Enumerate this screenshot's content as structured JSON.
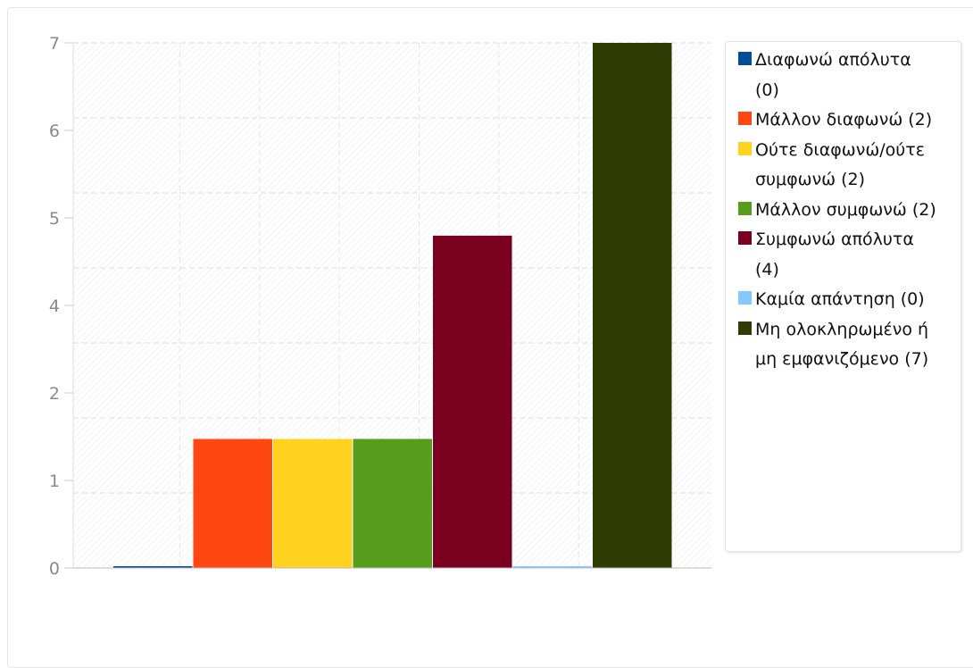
{
  "chart_data": {
    "type": "bar",
    "categories": [
      "Διαφωνώ απόλυτα",
      "Μάλλον διαφωνώ",
      "Ούτε διαφωνώ/ούτε συμφωνώ",
      "Μάλλον συμφωνώ",
      "Συμφωνώ απόλυτα",
      "Καμία απάντηση",
      "Μη ολοκληρωμένο ή μη εμφανιζόμενο"
    ],
    "values": [
      0,
      2,
      2,
      2,
      4,
      0,
      7
    ],
    "bar_heights_shown": [
      0.02,
      1.72,
      1.72,
      1.72,
      4.43,
      0.02,
      7
    ],
    "colors": [
      "#004c97",
      "#ff4711",
      "#ffd220",
      "#569c1d",
      "#7a0020",
      "#85c7ff",
      "#2f3c03"
    ],
    "legend": [
      "Διαφωνώ απόλυτα (0)",
      "Μάλλον διαφωνώ (2)",
      "Ούτε διαφωνώ/ούτε συμφωνώ (2)",
      "Μάλλον συμφωνώ (2)",
      "Συμφωνώ απόλυτα (4)",
      "Καμία απάντηση (0)",
      "Μη ολοκληρωμένο ή μη εμφανιζόμενο (7)"
    ],
    "y_ticks": [
      "0",
      "1",
      "2",
      "4",
      "5",
      "6",
      "7"
    ],
    "ylim": [
      0,
      7
    ],
    "grid": true,
    "legend_position": "right",
    "title": "",
    "xlabel": "",
    "ylabel": ""
  }
}
